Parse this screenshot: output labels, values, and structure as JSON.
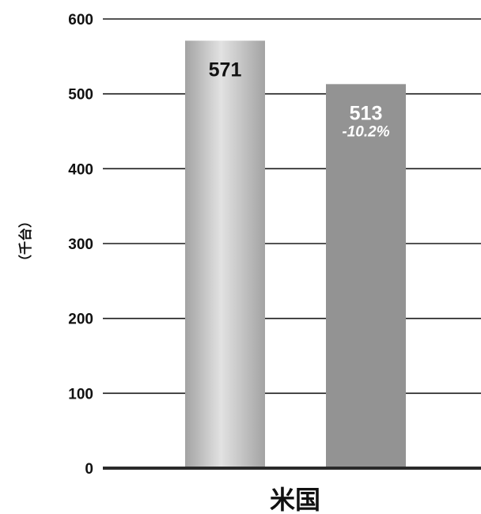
{
  "chart_data": {
    "type": "bar",
    "categories": [
      "米国"
    ],
    "series": [
      {
        "values": [
          571
        ]
      },
      {
        "values": [
          513
        ],
        "change_label": "-10.2%"
      }
    ],
    "ylabel": "（千台）",
    "ylim": [
      0,
      600
    ],
    "yticks": [
      "0",
      "100",
      "200",
      "300",
      "400",
      "500",
      "600"
    ],
    "grid": true,
    "legend": "none"
  },
  "colors": {
    "bar_1_light": "#e2e2e2",
    "bar_1_dark": "#a3a3a3",
    "bar_2": "#939393",
    "grid_line": "#1a1a1a",
    "axis_line": "#2a2a2a",
    "value_label_1": "#111111",
    "value_label_2": "#ffffff"
  }
}
